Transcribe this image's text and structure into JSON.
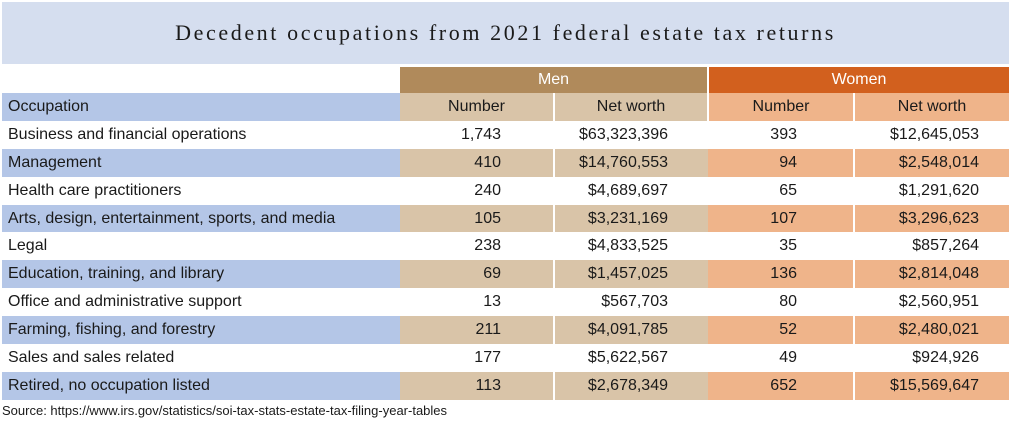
{
  "title": "Decedent occupations from 2021 federal estate tax returns",
  "source": "Source: https://www.irs.gov/statistics/soi-tax-stats-estate-tax-filing-year-tables",
  "chart_data": {
    "type": "table",
    "title": "Decedent occupations from 2021 federal estate tax returns",
    "groups": [
      "Men",
      "Women"
    ],
    "columns": [
      "Occupation",
      "Number",
      "Net worth",
      "Number",
      "Net worth"
    ],
    "rows": [
      [
        "Business and financial operations",
        "1,743",
        "$63,323,396",
        "393",
        "$12,645,053"
      ],
      [
        "Management",
        "410",
        "$14,760,553",
        "94",
        "$2,548,014"
      ],
      [
        "Health care practitioners",
        "240",
        "$4,689,697",
        "65",
        "$1,291,620"
      ],
      [
        "Arts, design, entertainment, sports, and media",
        "105",
        "$3,231,169",
        "107",
        "$3,296,623"
      ],
      [
        "Legal",
        "238",
        "$4,833,525",
        "35",
        "$857,264"
      ],
      [
        "Education, training, and library",
        "69",
        "$1,457,025",
        "136",
        "$2,814,048"
      ],
      [
        "Office and administrative support",
        "13",
        "$567,703",
        "80",
        "$2,560,951"
      ],
      [
        "Farming, fishing, and forestry",
        "211",
        "$4,091,785",
        "52",
        "$2,480,021"
      ],
      [
        "Sales and sales related",
        "177",
        "$5,622,567",
        "49",
        "$924,926"
      ],
      [
        "Retired, no occupation listed",
        "113",
        "$2,678,349",
        "652",
        "$15,569,647"
      ]
    ]
  },
  "colors": {
    "title_band": "#d5deef",
    "men_header": "#b08a5b",
    "men_shade": "#d9c4a8",
    "women_header": "#d2601e",
    "women_shade": "#efb48a",
    "occupation_shade": "#b4c6e7"
  }
}
